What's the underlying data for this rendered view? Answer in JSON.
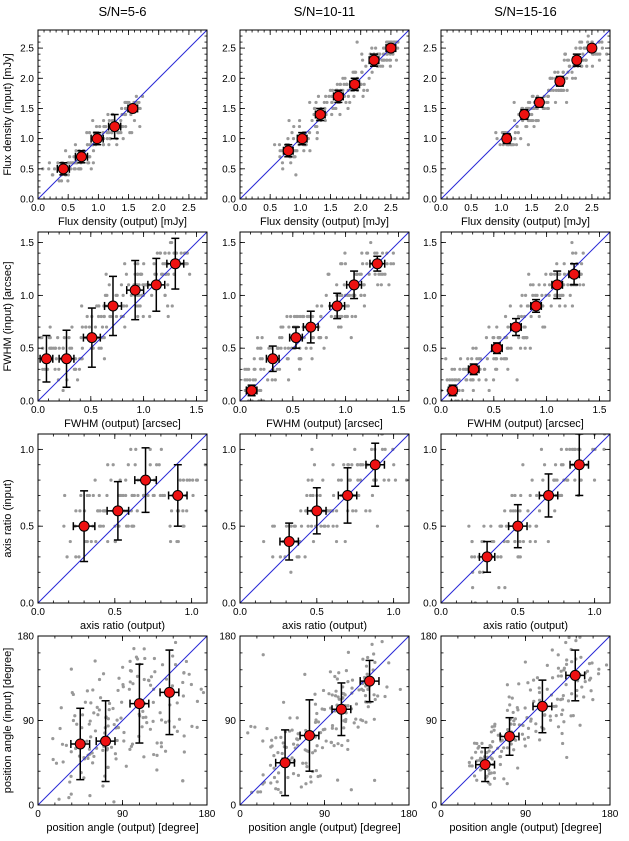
{
  "chart_data": {
    "type": "scatter",
    "layout": "grid 4 rows x 3 columns",
    "column_titles": [
      "S/N=5-6",
      "S/N=10-11",
      "S/N=15-16"
    ],
    "rows": [
      {
        "quantity": "flux",
        "xlabel": "Flux density (output) [mJy]",
        "ylabel": "Flux density (input) [mJy]",
        "xlim": [
          0,
          2.8
        ],
        "ylim": [
          0,
          2.8
        ],
        "ticks": [
          0.0,
          0.5,
          1.0,
          1.5,
          2.0,
          2.5
        ],
        "tick_labels": [
          "0.0",
          "0.5",
          "1.0",
          "1.5",
          "2.0",
          "2.5"
        ],
        "one_to_one_line": true,
        "panels": [
          {
            "means": [
              {
                "x": 0.42,
                "y": 0.5,
                "xerr": 0.1,
                "yerr": 0.1
              },
              {
                "x": 0.72,
                "y": 0.7,
                "xerr": 0.1,
                "yerr": 0.1
              },
              {
                "x": 0.98,
                "y": 1.0,
                "xerr": 0.1,
                "yerr": 0.1
              },
              {
                "x": 1.27,
                "y": 1.2,
                "xerr": 0.1,
                "yerr": 0.2
              },
              {
                "x": 1.57,
                "y": 1.5,
                "xerr": 0.08,
                "yerr": 0.05
              }
            ]
          },
          {
            "means": [
              {
                "x": 0.8,
                "y": 0.8,
                "xerr": 0.08,
                "yerr": 0.1
              },
              {
                "x": 1.03,
                "y": 1.0,
                "xerr": 0.08,
                "yerr": 0.1
              },
              {
                "x": 1.33,
                "y": 1.4,
                "xerr": 0.08,
                "yerr": 0.1
              },
              {
                "x": 1.63,
                "y": 1.7,
                "xerr": 0.08,
                "yerr": 0.1
              },
              {
                "x": 1.9,
                "y": 1.9,
                "xerr": 0.08,
                "yerr": 0.1
              },
              {
                "x": 2.22,
                "y": 2.3,
                "xerr": 0.08,
                "yerr": 0.1
              },
              {
                "x": 2.5,
                "y": 2.5,
                "xerr": 0.08,
                "yerr": 0.05
              }
            ]
          },
          {
            "means": [
              {
                "x": 1.09,
                "y": 1.0,
                "xerr": 0.06,
                "yerr": 0.08
              },
              {
                "x": 1.38,
                "y": 1.4,
                "xerr": 0.06,
                "yerr": 0.08
              },
              {
                "x": 1.63,
                "y": 1.6,
                "xerr": 0.06,
                "yerr": 0.08
              },
              {
                "x": 1.97,
                "y": 1.95,
                "xerr": 0.06,
                "yerr": 0.08
              },
              {
                "x": 2.25,
                "y": 2.3,
                "xerr": 0.06,
                "yerr": 0.1
              },
              {
                "x": 2.5,
                "y": 2.5,
                "xerr": 0.06,
                "yerr": 0.05
              }
            ]
          }
        ]
      },
      {
        "quantity": "fwhm",
        "xlabel": "FWHM (output) [arcsec]",
        "ylabel": "FWHM (input) [arcsec]",
        "xlim": [
          0,
          1.6
        ],
        "ylim": [
          0,
          1.6
        ],
        "ticks": [
          0.0,
          0.5,
          1.0,
          1.5
        ],
        "tick_labels": [
          "0.0",
          "0.5",
          "1.0",
          "1.5"
        ],
        "one_to_one_line": true,
        "panels": [
          {
            "means": [
              {
                "x": 0.08,
                "y": 0.4,
                "xerr": 0.06,
                "yerr": 0.22
              },
              {
                "x": 0.27,
                "y": 0.4,
                "xerr": 0.07,
                "yerr": 0.27
              },
              {
                "x": 0.51,
                "y": 0.6,
                "xerr": 0.08,
                "yerr": 0.28
              },
              {
                "x": 0.71,
                "y": 0.9,
                "xerr": 0.08,
                "yerr": 0.28
              },
              {
                "x": 0.92,
                "y": 1.05,
                "xerr": 0.08,
                "yerr": 0.28
              },
              {
                "x": 1.12,
                "y": 1.1,
                "xerr": 0.08,
                "yerr": 0.25
              },
              {
                "x": 1.3,
                "y": 1.3,
                "xerr": 0.08,
                "yerr": 0.24
              }
            ]
          },
          {
            "means": [
              {
                "x": 0.11,
                "y": 0.1,
                "xerr": 0.05,
                "yerr": 0.05
              },
              {
                "x": 0.31,
                "y": 0.4,
                "xerr": 0.06,
                "yerr": 0.12
              },
              {
                "x": 0.53,
                "y": 0.6,
                "xerr": 0.06,
                "yerr": 0.1
              },
              {
                "x": 0.67,
                "y": 0.7,
                "xerr": 0.07,
                "yerr": 0.15
              },
              {
                "x": 0.92,
                "y": 0.9,
                "xerr": 0.07,
                "yerr": 0.12
              },
              {
                "x": 1.08,
                "y": 1.1,
                "xerr": 0.07,
                "yerr": 0.13
              },
              {
                "x": 1.3,
                "y": 1.3,
                "xerr": 0.07,
                "yerr": 0.07
              }
            ]
          },
          {
            "means": [
              {
                "x": 0.11,
                "y": 0.1,
                "xerr": 0.04,
                "yerr": 0.05
              },
              {
                "x": 0.31,
                "y": 0.3,
                "xerr": 0.05,
                "yerr": 0.05
              },
              {
                "x": 0.53,
                "y": 0.5,
                "xerr": 0.05,
                "yerr": 0.05
              },
              {
                "x": 0.71,
                "y": 0.7,
                "xerr": 0.05,
                "yerr": 0.08
              },
              {
                "x": 0.9,
                "y": 0.9,
                "xerr": 0.05,
                "yerr": 0.06
              },
              {
                "x": 1.1,
                "y": 1.1,
                "xerr": 0.05,
                "yerr": 0.13
              },
              {
                "x": 1.26,
                "y": 1.2,
                "xerr": 0.05,
                "yerr": 0.1
              }
            ]
          }
        ]
      },
      {
        "quantity": "axis_ratio",
        "xlabel": "axis ratio (output)",
        "ylabel": "axis ratio (input)",
        "xlim": [
          0,
          1.1
        ],
        "ylim": [
          0,
          1.1
        ],
        "ticks": [
          0.0,
          0.5,
          1.0
        ],
        "tick_labels": [
          "0.0",
          "0.5",
          "1.0"
        ],
        "one_to_one_line": true,
        "panels": [
          {
            "means": [
              {
                "x": 0.3,
                "y": 0.5,
                "xerr": 0.07,
                "yerr": 0.23
              },
              {
                "x": 0.52,
                "y": 0.6,
                "xerr": 0.07,
                "yerr": 0.19
              },
              {
                "x": 0.7,
                "y": 0.8,
                "xerr": 0.07,
                "yerr": 0.21
              },
              {
                "x": 0.91,
                "y": 0.7,
                "xerr": 0.06,
                "yerr": 0.2
              }
            ]
          },
          {
            "means": [
              {
                "x": 0.32,
                "y": 0.4,
                "xerr": 0.06,
                "yerr": 0.12
              },
              {
                "x": 0.5,
                "y": 0.6,
                "xerr": 0.06,
                "yerr": 0.15
              },
              {
                "x": 0.7,
                "y": 0.7,
                "xerr": 0.06,
                "yerr": 0.18
              },
              {
                "x": 0.88,
                "y": 0.9,
                "xerr": 0.06,
                "yerr": 0.14
              }
            ]
          },
          {
            "means": [
              {
                "x": 0.3,
                "y": 0.3,
                "xerr": 0.05,
                "yerr": 0.1
              },
              {
                "x": 0.5,
                "y": 0.5,
                "xerr": 0.06,
                "yerr": 0.14
              },
              {
                "x": 0.7,
                "y": 0.7,
                "xerr": 0.06,
                "yerr": 0.14
              },
              {
                "x": 0.9,
                "y": 0.9,
                "xerr": 0.06,
                "yerr": 0.2
              }
            ]
          }
        ]
      },
      {
        "quantity": "position_angle",
        "xlabel": "position angle (output) [degree]",
        "ylabel": "position angle (input) [degree]",
        "xlim": [
          0,
          180
        ],
        "ylim": [
          0,
          180
        ],
        "ticks": [
          0,
          90,
          180
        ],
        "tick_labels": [
          "0",
          "90",
          "180"
        ],
        "one_to_one_line": true,
        "panels": [
          {
            "means": [
              {
                "x": 45,
                "y": 65,
                "xerr": 10,
                "yerr": 38
              },
              {
                "x": 72,
                "y": 68,
                "xerr": 10,
                "yerr": 43
              },
              {
                "x": 108,
                "y": 108,
                "xerr": 10,
                "yerr": 42
              },
              {
                "x": 140,
                "y": 120,
                "xerr": 10,
                "yerr": 45
              }
            ]
          },
          {
            "means": [
              {
                "x": 48,
                "y": 45,
                "xerr": 10,
                "yerr": 35
              },
              {
                "x": 74,
                "y": 74,
                "xerr": 10,
                "yerr": 38
              },
              {
                "x": 108,
                "y": 102,
                "xerr": 10,
                "yerr": 28
              },
              {
                "x": 138,
                "y": 132,
                "xerr": 10,
                "yerr": 22
              }
            ]
          },
          {
            "means": [
              {
                "x": 47,
                "y": 43,
                "xerr": 10,
                "yerr": 18
              },
              {
                "x": 73,
                "y": 73,
                "xerr": 10,
                "yerr": 20
              },
              {
                "x": 108,
                "y": 105,
                "xerr": 10,
                "yerr": 28
              },
              {
                "x": 143,
                "y": 138,
                "xerr": 10,
                "yerr": 27
              }
            ]
          }
        ]
      }
    ]
  }
}
